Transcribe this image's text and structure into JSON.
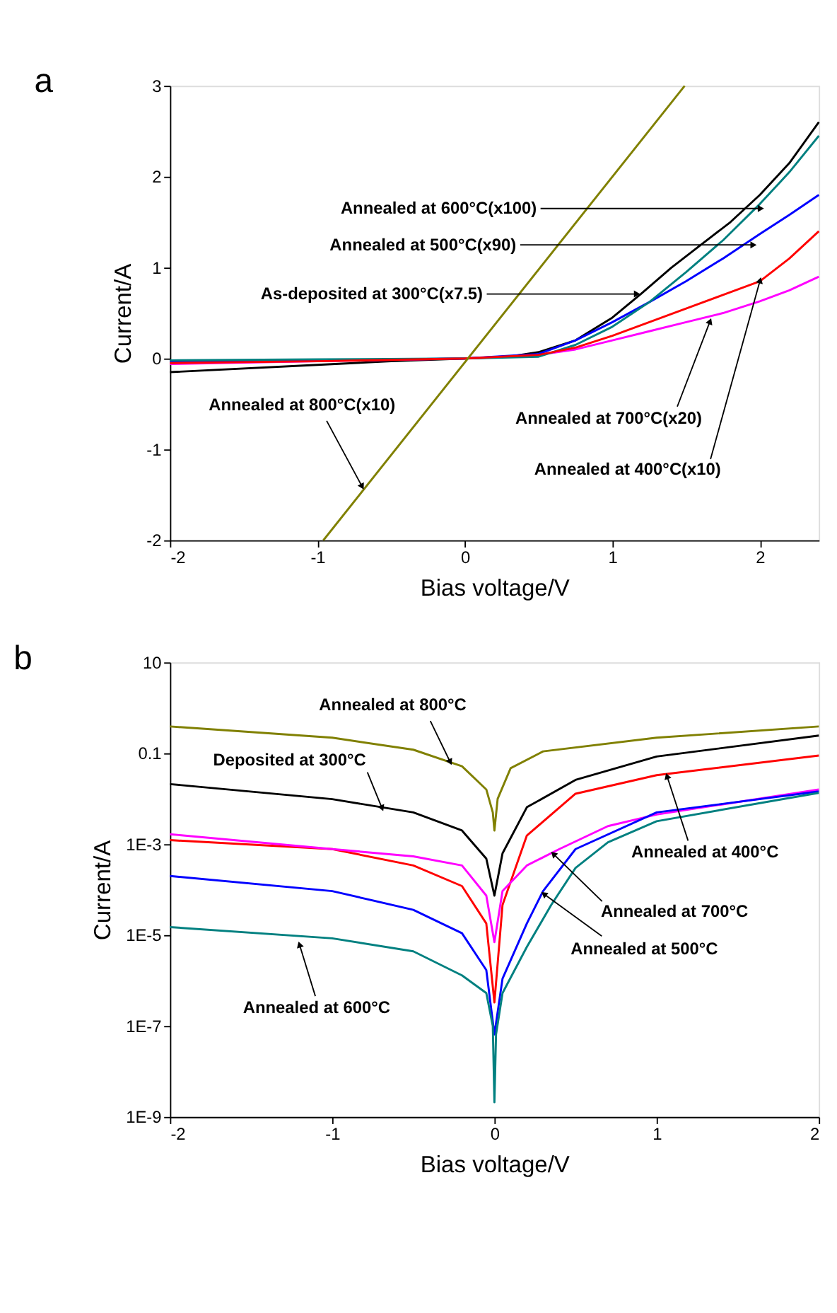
{
  "chart_data": [
    {
      "type": "line",
      "title": "a",
      "xlabel": "Bias voltage/V",
      "ylabel": "Current/A",
      "xlim": [
        -2,
        2.4
      ],
      "ylim": [
        -2,
        3
      ],
      "xticks": [
        -2,
        -1,
        0,
        1,
        2
      ],
      "yticks": [
        -2,
        -1,
        0,
        1,
        2,
        3
      ],
      "grid": false,
      "legend": false,
      "line_style": "solid",
      "marker": "none",
      "series": [
        {
          "color": "#000000",
          "x": [
            -2,
            -1,
            -0.5,
            0,
            0.3,
            0.5,
            0.75,
            1.0,
            1.2,
            1.4,
            1.6,
            1.8,
            2.0,
            2.2,
            2.4
          ],
          "values": [
            -0.15,
            -0.07,
            -0.03,
            0,
            0.02,
            0.07,
            0.2,
            0.45,
            0.72,
            1.0,
            1.25,
            1.5,
            1.8,
            2.15,
            2.6
          ]
        },
        {
          "color": "#ff00ff",
          "x": [
            -2,
            -1,
            0,
            0.5,
            0.75,
            1.0,
            1.25,
            1.5,
            1.75,
            2.0,
            2.2,
            2.4
          ],
          "values": [
            -0.06,
            -0.03,
            0,
            0.04,
            0.1,
            0.2,
            0.3,
            0.4,
            0.5,
            0.63,
            0.75,
            0.9
          ]
        },
        {
          "color": "#0000ff",
          "x": [
            -2,
            -1,
            0,
            0.5,
            0.75,
            1.0,
            1.25,
            1.5,
            1.75,
            2.0,
            2.2,
            2.4
          ],
          "values": [
            -0.03,
            -0.02,
            0,
            0.05,
            0.2,
            0.4,
            0.62,
            0.85,
            1.1,
            1.37,
            1.58,
            1.8
          ]
        },
        {
          "color": "#008080",
          "x": [
            -2,
            -1,
            0,
            0.5,
            0.75,
            1.0,
            1.25,
            1.5,
            1.75,
            2.0,
            2.2,
            2.4
          ],
          "values": [
            -0.02,
            -0.01,
            0,
            0.02,
            0.15,
            0.35,
            0.62,
            0.95,
            1.3,
            1.7,
            2.05,
            2.45
          ]
        },
        {
          "color": "#ff0000",
          "x": [
            -2,
            -1,
            0,
            0.5,
            0.75,
            1.0,
            1.25,
            1.5,
            1.75,
            2.0,
            2.2,
            2.4
          ],
          "values": [
            -0.05,
            -0.03,
            0,
            0.04,
            0.12,
            0.25,
            0.4,
            0.55,
            0.7,
            0.85,
            1.1,
            1.4
          ]
        },
        {
          "color": "#808000",
          "x": [
            -0.96,
            1.49
          ],
          "values": [
            -2,
            3
          ]
        }
      ],
      "annotations": [
        {
          "text": "Annealed at 600°C(x100)",
          "x": 2.0,
          "y": 1.65
        },
        {
          "text": "Annealed at 500°C(x90)",
          "x": 1.95,
          "y": 1.25
        },
        {
          "text": "As-deposited at 300°C(x7.5)",
          "x": 1.16,
          "y": 0.71
        },
        {
          "text": "Annealed at 800°C(x10)",
          "x": -0.7,
          "y": -1.4
        },
        {
          "text": "Annealed at 700°C(x20)",
          "x": 1.66,
          "y": 0.4
        },
        {
          "text": "Annealed at 400°C(x10)",
          "x": 2.0,
          "y": 0.85
        }
      ]
    },
    {
      "type": "line",
      "title": "b",
      "xlabel": "Bias voltage/V",
      "ylabel": "Current/A",
      "xlim": [
        -2,
        2
      ],
      "ylim": [
        1e-09,
        10
      ],
      "xticks": [
        -2,
        -1,
        0,
        1,
        2
      ],
      "yticks": [
        10,
        0.1,
        {
          "value": 0.001,
          "label": "1E-3"
        },
        {
          "value": 1e-05,
          "label": "1E-5"
        },
        {
          "value": 1e-07,
          "label": "1E-7"
        },
        {
          "value": 1e-09,
          "label": "1E-9"
        }
      ],
      "log": "y",
      "grid": false,
      "legend": false,
      "line_style": "solid",
      "marker": "none",
      "series": [
        {
          "color": "#808000",
          "x": [
            -2,
            -1,
            -0.5,
            -0.2,
            -0.05,
            -0.01,
            0,
            0.02,
            0.1,
            0.3,
            1,
            2
          ],
          "values": [
            0.39,
            0.22,
            0.12,
            0.052,
            0.016,
            0.005,
            0.002,
            0.01,
            0.047,
            0.11,
            0.22,
            0.39
          ]
        },
        {
          "color": "#000000",
          "x": [
            -2,
            -1,
            -0.5,
            -0.2,
            -0.05,
            0,
            0.05,
            0.2,
            0.5,
            1,
            2
          ],
          "values": [
            0.021,
            0.0098,
            0.005,
            0.002,
            0.00048,
            7.4e-05,
            0.00063,
            0.0065,
            0.026,
            0.085,
            0.245
          ]
        },
        {
          "color": "#ff0000",
          "x": [
            -2,
            -1,
            -0.5,
            -0.2,
            -0.05,
            0,
            0.05,
            0.2,
            0.5,
            1,
            2
          ],
          "values": [
            0.00123,
            0.00078,
            0.00034,
            0.00012,
            1.8e-05,
            3.3e-07,
            4.6e-05,
            0.00155,
            0.0129,
            0.033,
            0.089
          ]
        },
        {
          "color": "#ff00ff",
          "x": [
            -2,
            -1,
            -0.5,
            -0.2,
            -0.05,
            0,
            0.05,
            0.2,
            0.4,
            0.7,
            1,
            2
          ],
          "values": [
            0.00166,
            0.00078,
            0.00054,
            0.00034,
            7.4e-05,
            7e-06,
            9.3e-05,
            0.00034,
            0.00078,
            0.0025,
            0.0045,
            0.016
          ]
        },
        {
          "color": "#0000ff",
          "x": [
            -2,
            -1,
            -0.5,
            -0.2,
            -0.05,
            0,
            0.05,
            0.2,
            0.3,
            0.5,
            1,
            2
          ],
          "values": [
            0.0002,
            9.3e-05,
            3.6e-05,
            1.1e-05,
            1.7e-06,
            6.5e-08,
            1.1e-06,
            1.8e-05,
            9.3e-05,
            0.00078,
            0.005,
            0.0145
          ]
        },
        {
          "color": "#008080",
          "x": [
            -2,
            -1,
            -0.5,
            -0.2,
            -0.05,
            -0.01,
            0,
            0.01,
            0.05,
            0.2,
            0.35,
            0.5,
            0.7,
            1,
            2
          ],
          "values": [
            1.5e-05,
            8.5e-06,
            4.4e-06,
            1.3e-06,
            5.3e-07,
            1e-07,
            2.1e-09,
            6.5e-08,
            5.3e-07,
            5.5e-06,
            4.6e-05,
            0.0003,
            0.0011,
            0.0032,
            0.0135
          ]
        }
      ],
      "annotations": [
        {
          "text": "Annealed at 800°C",
          "x": -0.275,
          "y": 0.067
        },
        {
          "text": "Deposited at 300°C",
          "x": -0.695,
          "y": 0.0065
        },
        {
          "text": "Annealed at 400°C",
          "x": 1.066,
          "y": 0.03
        },
        {
          "text": "Annealed at 700°C",
          "x": 0.368,
          "y": 0.00059
        },
        {
          "text": "Annealed at 500°C",
          "x": 0.31,
          "y": 7.8e-05
        },
        {
          "text": "Annealed at 600°C",
          "x": -1.2,
          "y": 5.9e-06
        }
      ]
    }
  ]
}
